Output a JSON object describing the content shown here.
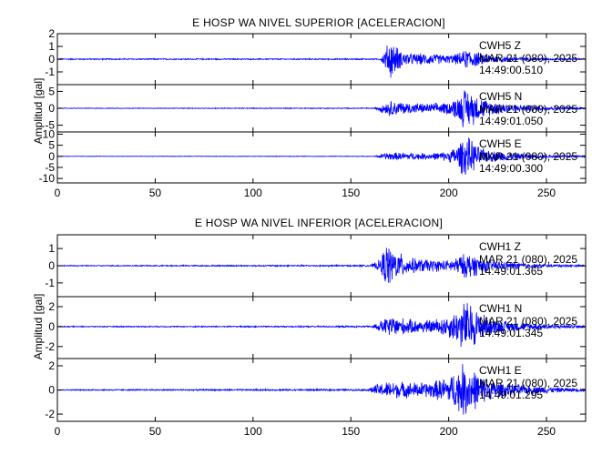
{
  "chart_data": [
    {
      "type": "line",
      "title": "E HOSP WA NIVEL SUPERIOR [ACELERACION]",
      "ylabel": "Amplitud [gal]",
      "xlabel": "",
      "xlim": [
        0,
        270
      ],
      "xticks": [
        0,
        50,
        100,
        150,
        200,
        250
      ],
      "grid": false,
      "panels": [
        {
          "station": "CWH5",
          "component": "Z",
          "date": "MAR 21 (080), 2025",
          "time": "14:49:00.510",
          "ylim": [
            -2,
            2
          ],
          "yticks": [
            -1,
            0,
            1,
            2
          ],
          "envelope": {
            "x": [
              0,
              165,
              167,
              170,
              175,
              180,
              190,
              200,
              205,
              210,
              215,
              220,
              230,
              240,
              250,
              260,
              270
            ],
            "amp": [
              0.05,
              0.05,
              0.6,
              1.8,
              0.8,
              0.5,
              0.5,
              0.35,
              0.5,
              0.9,
              0.6,
              0.4,
              0.25,
              0.15,
              0.1,
              0.08,
              0.06
            ]
          }
        },
        {
          "station": "CWH5",
          "component": "N",
          "date": "MAR 21 (080), 2025",
          "time": "14:49:01.050",
          "ylim": [
            -7,
            7
          ],
          "yticks": [
            -5,
            0,
            5
          ],
          "envelope": {
            "x": [
              0,
              162,
              165,
              170,
              180,
              190,
              200,
              205,
              208,
              212,
              215,
              220,
              230,
              240,
              250,
              260,
              270
            ],
            "amp": [
              0.1,
              0.15,
              1.2,
              2.5,
              1.8,
              1.5,
              2.0,
              4.0,
              6.5,
              5.5,
              4.0,
              2.5,
              1.5,
              1.0,
              0.7,
              0.5,
              0.3
            ]
          }
        },
        {
          "station": "CWH5",
          "component": "E",
          "date": "MAR 21 (080), 2025",
          "time": "14:49:00.300",
          "ylim": [
            -12,
            11
          ],
          "yticks": [
            -10,
            -5,
            0,
            5,
            10
          ],
          "envelope": {
            "x": [
              0,
              162,
              165,
              170,
              180,
              190,
              200,
              205,
              208,
              212,
              215,
              220,
              230,
              240,
              250,
              260,
              270
            ],
            "amp": [
              0.1,
              0.15,
              1.0,
              2.0,
              1.8,
              1.5,
              2.5,
              6.0,
              10.5,
              8.0,
              5.0,
              3.0,
              2.0,
              1.3,
              0.9,
              0.6,
              0.4
            ]
          }
        }
      ]
    },
    {
      "type": "line",
      "title": "E HOSP WA NIVEL INFERIOR [ACELERACION]",
      "ylabel": "Amplitud [gal]",
      "xlabel": "",
      "xlim": [
        0,
        270
      ],
      "xticks": [
        0,
        50,
        100,
        150,
        200,
        250
      ],
      "grid": false,
      "panels": [
        {
          "station": "CWH1",
          "component": "Z",
          "date": "MAR 21 (080), 2025",
          "time": "14:49:01.365",
          "ylim": [
            -1.8,
            1.8
          ],
          "yticks": [
            -1,
            0,
            1
          ],
          "envelope": {
            "x": [
              0,
              160,
              165,
              168,
              172,
              180,
              190,
              200,
              205,
              210,
              215,
              220,
              230,
              240,
              250,
              260,
              270
            ],
            "amp": [
              0.03,
              0.05,
              0.4,
              1.45,
              1.0,
              0.5,
              0.4,
              0.35,
              0.6,
              0.85,
              0.6,
              0.35,
              0.25,
              0.15,
              0.1,
              0.08,
              0.05
            ]
          }
        },
        {
          "station": "CWH1",
          "component": "N",
          "date": "MAR 21 (080), 2025",
          "time": "14:49:01.345",
          "ylim": [
            -3.2,
            3
          ],
          "yticks": [
            -2,
            0,
            2
          ],
          "envelope": {
            "x": [
              0,
              160,
              165,
              170,
              180,
              190,
              200,
              205,
              208,
              212,
              215,
              220,
              230,
              240,
              250,
              260,
              270
            ],
            "amp": [
              0.05,
              0.08,
              0.6,
              1.2,
              0.8,
              0.7,
              1.2,
              2.0,
              2.9,
              2.5,
              1.8,
              1.0,
              0.6,
              0.4,
              0.3,
              0.2,
              0.15
            ]
          }
        },
        {
          "station": "CWH1",
          "component": "E",
          "date": "MAR 21 (080), 2025",
          "time": "14:49:01.295",
          "ylim": [
            -2.6,
            2.6
          ],
          "yticks": [
            -2,
            0,
            2
          ],
          "envelope": {
            "x": [
              0,
              158,
              163,
              170,
              180,
              190,
              200,
              205,
              208,
              212,
              215,
              220,
              230,
              240,
              250,
              260,
              270
            ],
            "amp": [
              0.05,
              0.08,
              0.5,
              0.8,
              0.7,
              0.7,
              1.2,
              2.0,
              2.5,
              2.0,
              1.5,
              0.9,
              0.6,
              0.45,
              0.3,
              0.2,
              0.15
            ]
          }
        }
      ]
    }
  ],
  "colors": {
    "trace": "#0000ff",
    "axes": "#000000",
    "background": "#ffffff"
  }
}
